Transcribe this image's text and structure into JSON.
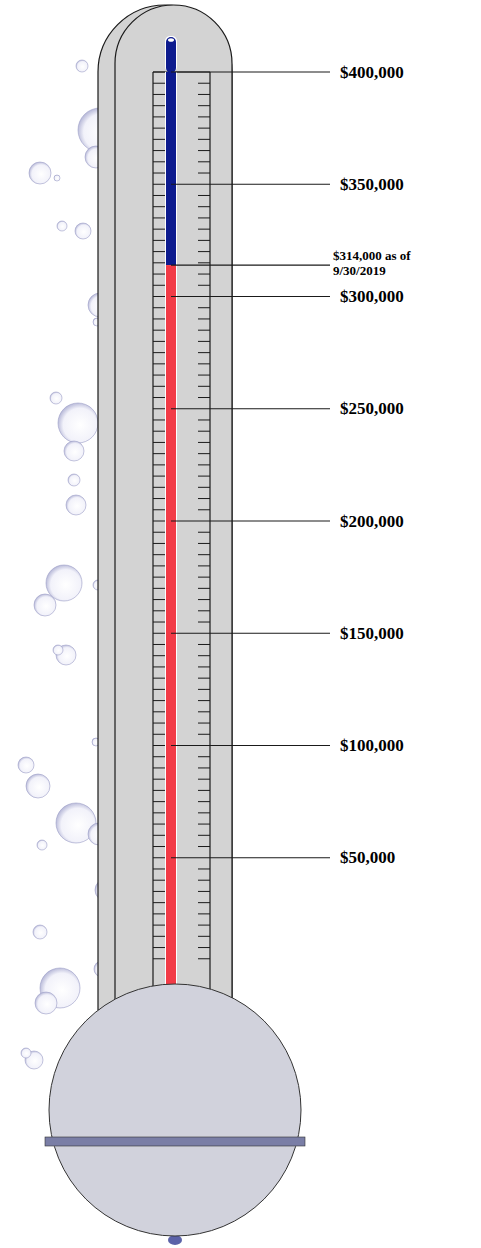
{
  "chart_data": {
    "type": "thermometer",
    "values": [
      314000
    ],
    "color": "#f23b47",
    "ylim": [
      0,
      400000
    ],
    "yticks": [
      {
        "value": 50000,
        "label": "$50,000"
      },
      {
        "value": 100000,
        "label": "$100,000"
      },
      {
        "value": 150000,
        "label": "$150,000"
      },
      {
        "value": 200000,
        "label": "$200,000"
      },
      {
        "value": 250000,
        "label": "$250,000"
      },
      {
        "value": 300000,
        "label": "$300,000"
      },
      {
        "value": 350000,
        "label": "$350,000"
      },
      {
        "value": 400000,
        "label": "$400,000"
      }
    ],
    "annotations": [
      {
        "text": "$314,000 as of 9/30/2019",
        "value": 314000
      }
    ]
  }
}
